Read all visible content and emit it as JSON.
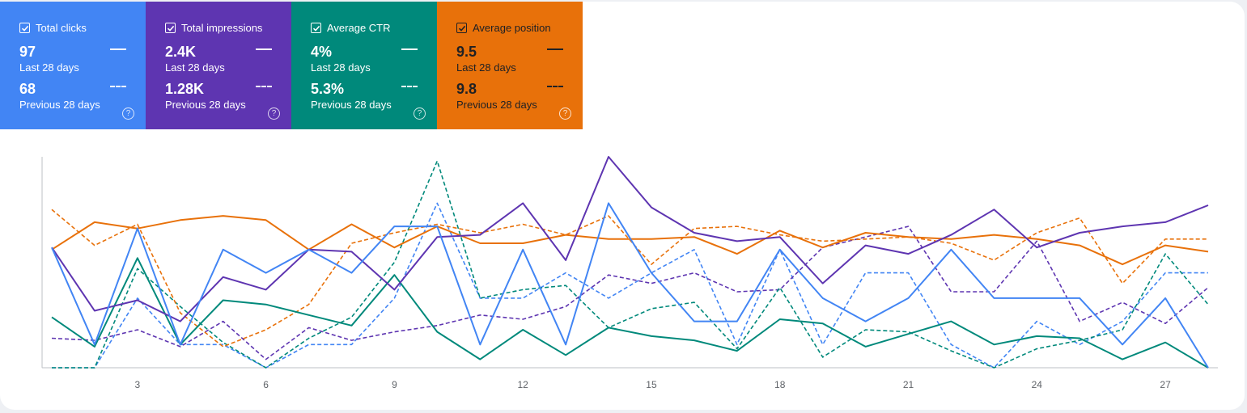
{
  "metrics": [
    {
      "key": "clicks",
      "label": "Total clicks",
      "current_value": "97",
      "current_period": "Last 28 days",
      "previous_value": "68",
      "previous_period": "Previous 28 days",
      "color": "#4285f4",
      "checked": true,
      "help_icon": "help-circle-icon"
    },
    {
      "key": "impressions",
      "label": "Total impressions",
      "current_value": "2.4K",
      "current_period": "Last 28 days",
      "previous_value": "1.28K",
      "previous_period": "Previous 28 days",
      "color": "#5e35b1",
      "checked": true,
      "help_icon": "help-circle-icon"
    },
    {
      "key": "ctr",
      "label": "Average CTR",
      "current_value": "4%",
      "current_period": "Last 28 days",
      "previous_value": "5.3%",
      "previous_period": "Previous 28 days",
      "color": "#00897b",
      "checked": true,
      "help_icon": "help-circle-icon"
    },
    {
      "key": "position",
      "label": "Average position",
      "current_value": "9.5",
      "current_period": "Last 28 days",
      "previous_value": "9.8",
      "previous_period": "Previous 28 days",
      "color": "#e8710a",
      "checked": true,
      "help_icon": "help-circle-icon"
    }
  ],
  "chart_data": {
    "type": "line",
    "x": [
      1,
      2,
      3,
      4,
      5,
      6,
      7,
      8,
      9,
      10,
      11,
      12,
      13,
      14,
      15,
      16,
      17,
      18,
      19,
      20,
      21,
      22,
      23,
      24,
      25,
      26,
      27,
      28
    ],
    "xticks": [
      "3",
      "6",
      "9",
      "12",
      "15",
      "18",
      "21",
      "24",
      "27"
    ],
    "xtick_values": [
      3,
      6,
      9,
      12,
      15,
      18,
      21,
      24,
      27
    ],
    "ylim": [
      0,
      100
    ],
    "grid": false,
    "legend": "none",
    "series": [
      {
        "metric": "clicks",
        "period": "current",
        "style": "solid",
        "color": "#4285f4",
        "values": [
          57,
          11,
          66,
          11,
          56,
          45,
          56,
          45,
          67,
          67,
          11,
          56,
          11,
          78,
          45,
          22,
          22,
          56,
          33,
          22,
          33,
          56,
          33,
          33,
          33,
          11,
          33,
          0
        ]
      },
      {
        "metric": "clicks",
        "period": "previous",
        "style": "dashed",
        "color": "#4285f4",
        "values": [
          0,
          0,
          33,
          11,
          11,
          0,
          11,
          11,
          33,
          78,
          33,
          33,
          45,
          33,
          45,
          56,
          11,
          56,
          11,
          45,
          45,
          11,
          0,
          22,
          11,
          22,
          45,
          45
        ]
      },
      {
        "metric": "impressions",
        "period": "current",
        "style": "solid",
        "color": "#5e35b1",
        "values": [
          57,
          27,
          32,
          22,
          43,
          37,
          56,
          55,
          37,
          62,
          63,
          78,
          51,
          100,
          76,
          64,
          60,
          62,
          40,
          58,
          54,
          63,
          75,
          57,
          64,
          67,
          69,
          77
        ]
      },
      {
        "metric": "impressions",
        "period": "previous",
        "style": "dashed",
        "color": "#5e35b1",
        "values": [
          14,
          13,
          18,
          10,
          22,
          4,
          19,
          13,
          17,
          20,
          25,
          23,
          29,
          44,
          40,
          45,
          36,
          37,
          57,
          62,
          67,
          36,
          36,
          60,
          22,
          31,
          21,
          38
        ]
      },
      {
        "metric": "ctr",
        "period": "current",
        "style": "solid",
        "color": "#00897b",
        "values": [
          24,
          10,
          52,
          11,
          32,
          30,
          25,
          20,
          44,
          17,
          4,
          18,
          6,
          19,
          15,
          13,
          8,
          23,
          21,
          10,
          16,
          22,
          11,
          15,
          14,
          4,
          12,
          0
        ]
      },
      {
        "metric": "ctr",
        "period": "previous",
        "style": "dashed",
        "color": "#00897b",
        "values": [
          0,
          0,
          47,
          29,
          12,
          0,
          14,
          24,
          50,
          98,
          33,
          37,
          39,
          19,
          28,
          31,
          9,
          38,
          5,
          18,
          17,
          8,
          0,
          9,
          13,
          18,
          54,
          30
        ]
      },
      {
        "metric": "position",
        "period": "current",
        "style": "solid",
        "color": "#e8710a",
        "values": [
          56,
          69,
          66,
          70,
          72,
          70,
          56,
          68,
          57,
          67,
          59,
          59,
          63,
          61,
          61,
          62,
          54,
          65,
          57,
          64,
          62,
          61,
          63,
          61,
          58,
          49,
          58,
          55
        ]
      },
      {
        "metric": "position",
        "period": "previous",
        "style": "dashed",
        "color": "#e8710a",
        "values": [
          75,
          58,
          68,
          26,
          10,
          18,
          30,
          59,
          64,
          68,
          64,
          68,
          63,
          72,
          49,
          66,
          67,
          63,
          60,
          61,
          62,
          59,
          51,
          64,
          71,
          40,
          61,
          61
        ]
      }
    ]
  }
}
